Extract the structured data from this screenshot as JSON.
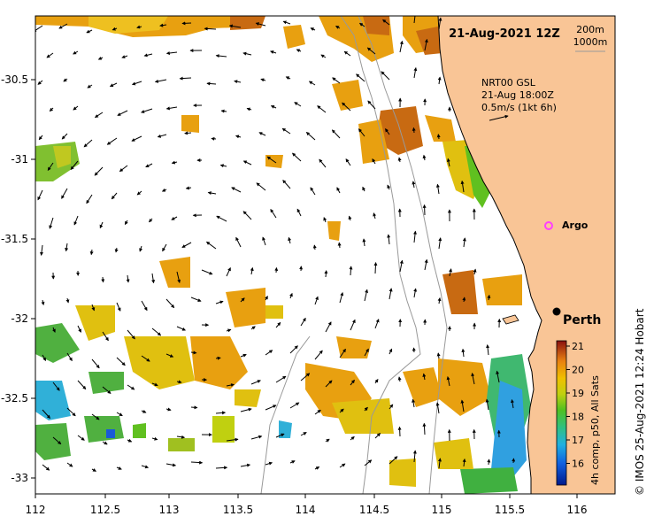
{
  "map": {
    "title": "21-Aug-2021 12Z",
    "depth_contours": [
      "200m",
      "1000m"
    ],
    "current_legend": {
      "line1": "NRT00 GSL",
      "line2": "21-Aug 18:00Z",
      "line3": "0.5m/s (1kt 6h)"
    },
    "argo_label": "Argo",
    "city_label": "Perth",
    "side_credit": "© IMOS 25-Aug-2021 12:24 Hobart",
    "colorbar": {
      "title": "4h comp, p50, All Sats",
      "ticks": [
        "21",
        "20",
        "19",
        "18",
        "17",
        "16"
      ],
      "range": [
        15.5,
        21
      ]
    },
    "x_ticks": [
      "112",
      "112.5",
      "113",
      "113.5",
      "114",
      "114.5",
      "115",
      "115.5",
      "116"
    ],
    "y_ticks": [
      "-30.5",
      "-31",
      "-31.5",
      "-32",
      "-32.5",
      "-33"
    ],
    "colors": {
      "land": "#f9c596",
      "warm": "#e8a010",
      "hot": "#c86a12",
      "mid": "#e0c010",
      "green": "#60c020",
      "cyan": "#30b0d8",
      "blue": "#1a5ad8",
      "argo": "#ff40ff"
    }
  }
}
